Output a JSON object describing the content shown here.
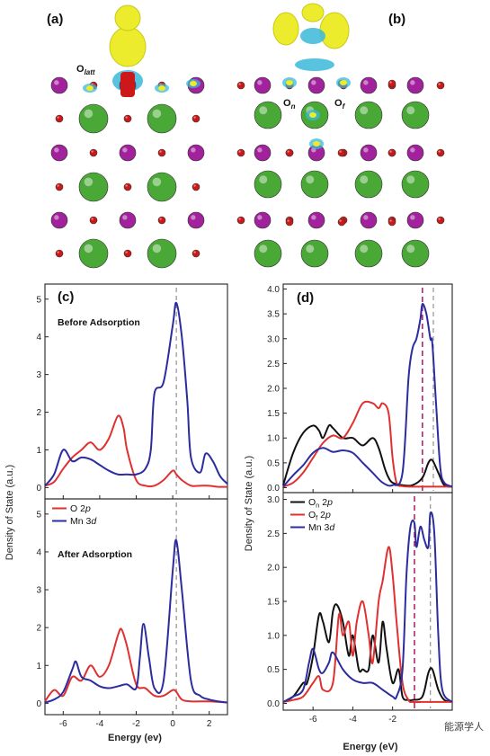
{
  "structure_panels": {
    "a": {
      "label": "(a)",
      "annotation_main": "O",
      "annotation_sub": "latt"
    },
    "b": {
      "label": "(b)",
      "n_main": "O",
      "n_sub": "n",
      "f_main": "O",
      "f_sub": "f"
    }
  },
  "colors": {
    "O2p": "#e03030",
    "Mn3d": "#2c2ca0",
    "On2p": "#111111",
    "Of2p": "#e03030",
    "fermi_grey": "#9a9a9a",
    "fermi_pink": "#b2246e",
    "mn_atom": "#a2219c",
    "la_atom": "#49a836",
    "o_atom": "#cc1818",
    "charge_yellow": "#ecec2c",
    "charge_cyan": "#39b9d9"
  },
  "watermark": "能源学人",
  "chart_data": [
    {
      "id": "c",
      "panel_label": "(c)",
      "type": "line",
      "xlabel": "Energy (ev)",
      "ylabel": "Density of State (a.u.)",
      "xlim": [
        -7,
        3
      ],
      "xticks": [
        "-6",
        "-4",
        "-2",
        "0",
        "2"
      ],
      "subplots": [
        {
          "id": "c_top",
          "annotation": "Before Adsorption",
          "ylim": [
            -0.3,
            5.4
          ],
          "yticks": [
            "0",
            "1",
            "2",
            "3",
            "4",
            "5"
          ],
          "fermi_level": 0.2,
          "series": [
            {
              "key": "o2p",
              "color": "#e03030",
              "x": [
                -7,
                -6.5,
                -6.0,
                -5.5,
                -5.0,
                -4.5,
                -4.0,
                -3.5,
                -3.0,
                -2.7,
                -2.5,
                -2.0,
                -1.5,
                -1.0,
                -0.5,
                0.0,
                0.2,
                0.5,
                1.0,
                1.5,
                2.0,
                2.5,
                3.0
              ],
              "y": [
                0.05,
                0.15,
                0.5,
                0.8,
                1.0,
                1.2,
                1.0,
                1.3,
                1.9,
                1.6,
                1.0,
                0.2,
                0.05,
                0.05,
                0.2,
                0.45,
                0.35,
                0.2,
                0.05,
                0.05,
                0.05,
                0.02,
                0.02
              ]
            },
            {
              "key": "mn3d",
              "color": "#2c2ca0",
              "x": [
                -7,
                -6.5,
                -6.0,
                -5.5,
                -5.0,
                -4.5,
                -4.0,
                -3.5,
                -3.0,
                -2.5,
                -2.0,
                -1.5,
                -1.2,
                -1.0,
                -0.5,
                0.0,
                0.2,
                0.5,
                0.8,
                1.0,
                1.5,
                1.8,
                2.2,
                2.6,
                3.0
              ],
              "y": [
                0.05,
                0.35,
                1.0,
                0.7,
                0.8,
                0.75,
                0.6,
                0.45,
                0.35,
                0.35,
                0.35,
                0.5,
                1.0,
                2.5,
                2.8,
                4.3,
                4.9,
                4.0,
                2.3,
                0.8,
                0.4,
                0.9,
                0.7,
                0.3,
                0.1
              ]
            }
          ]
        },
        {
          "id": "c_bottom",
          "annotation": "After Adsorption",
          "ylim": [
            -0.3,
            5.4
          ],
          "yticks": [
            "0",
            "1",
            "2",
            "3",
            "4",
            "5"
          ],
          "fermi_level": 0.2,
          "legend": [
            {
              "key": "o2p",
              "main": "O 2",
              "italic": "p",
              "color": "#e03030"
            },
            {
              "key": "mn3d",
              "main": "Mn 3",
              "italic": "d",
              "color": "#2c2ca0"
            }
          ],
          "series": [
            {
              "key": "o2p",
              "color": "#e03030",
              "x": [
                -7,
                -6.5,
                -6.0,
                -5.5,
                -5.0,
                -4.5,
                -4.0,
                -3.5,
                -3.0,
                -2.8,
                -2.5,
                -2.0,
                -1.5,
                -1.0,
                -0.5,
                0.0,
                0.2,
                0.5,
                1.0,
                2.0,
                3.0
              ],
              "y": [
                0.05,
                0.35,
                0.2,
                0.7,
                0.6,
                1.0,
                0.7,
                1.0,
                1.8,
                1.95,
                1.5,
                0.5,
                0.4,
                0.2,
                0.2,
                0.35,
                0.3,
                0.1,
                0.05,
                0.05,
                0.02
              ]
            },
            {
              "key": "mn3d",
              "color": "#2c2ca0",
              "x": [
                -7,
                -6.5,
                -6.0,
                -5.5,
                -5.3,
                -5.0,
                -4.5,
                -4.0,
                -3.5,
                -3.0,
                -2.5,
                -2.0,
                -1.8,
                -1.6,
                -1.3,
                -1.0,
                -0.5,
                0.0,
                0.2,
                0.5,
                1.0,
                1.5,
                2.0,
                2.5,
                3.0
              ],
              "y": [
                0.02,
                0.1,
                0.3,
                0.9,
                1.1,
                0.7,
                0.6,
                0.45,
                0.4,
                0.45,
                0.5,
                0.4,
                1.2,
                2.1,
                1.2,
                0.4,
                0.6,
                3.5,
                4.3,
                3.0,
                0.6,
                0.2,
                0.1,
                0.05,
                0.02
              ]
            }
          ]
        }
      ]
    },
    {
      "id": "d",
      "panel_label": "(d)",
      "type": "line",
      "xlabel": "Energy (eV)",
      "ylabel": "Density of State (a.u.)",
      "xlim": [
        -7.5,
        1
      ],
      "xticks": [
        "-6",
        "-4",
        "-2"
      ],
      "subplots": [
        {
          "id": "d_top",
          "ylim": [
            -0.1,
            4.1
          ],
          "yticks": [
            "0.0",
            "0.5",
            "1.0",
            "1.5",
            "2.0",
            "2.5",
            "3.0",
            "3.5",
            "4.0"
          ],
          "fermi_pink": -0.5,
          "fermi_grey": 0.05,
          "series": [
            {
              "key": "on2p",
              "color": "#111111",
              "x": [
                -7.5,
                -7.0,
                -6.5,
                -6.0,
                -5.7,
                -5.5,
                -5.2,
                -5.0,
                -4.5,
                -4.0,
                -3.5,
                -3.0,
                -2.7,
                -2.4,
                -2.2,
                -2.0,
                -1.5,
                -1.0,
                -0.5,
                -0.2,
                0.0,
                0.3,
                0.6,
                1.0
              ],
              "y": [
                0.05,
                0.7,
                1.1,
                1.25,
                1.15,
                1.0,
                1.25,
                1.2,
                1.0,
                1.0,
                0.85,
                1.0,
                0.8,
                0.4,
                0.2,
                0.1,
                0.05,
                0.05,
                0.2,
                0.5,
                0.55,
                0.3,
                0.05,
                0.02
              ]
            },
            {
              "key": "of2p",
              "color": "#e03030",
              "x": [
                -7.5,
                -7.0,
                -6.5,
                -6.0,
                -5.5,
                -5.0,
                -4.5,
                -4.0,
                -3.5,
                -3.0,
                -2.7,
                -2.5,
                -2.2,
                -2.0,
                -1.8,
                -1.5,
                -1.0,
                -0.5,
                0.0,
                0.5,
                1.0
              ],
              "y": [
                0.02,
                0.1,
                0.3,
                0.6,
                0.9,
                1.05,
                1.0,
                1.3,
                1.7,
                1.7,
                1.6,
                1.7,
                1.5,
                0.6,
                0.1,
                0.03,
                0.02,
                0.02,
                0.02,
                0.02,
                0.02
              ]
            },
            {
              "key": "mn3d",
              "color": "#2c2ca0",
              "x": [
                -7.5,
                -7.0,
                -6.5,
                -6.0,
                -5.5,
                -5.0,
                -4.5,
                -4.0,
                -3.5,
                -3.0,
                -2.5,
                -2.0,
                -1.5,
                -1.2,
                -1.0,
                -0.8,
                -0.6,
                -0.5,
                -0.3,
                -0.1,
                0.0,
                0.2,
                0.4,
                0.6,
                1.0
              ],
              "y": [
                0.02,
                0.25,
                0.45,
                0.7,
                0.8,
                0.72,
                0.75,
                0.7,
                0.5,
                0.3,
                0.1,
                0.05,
                0.3,
                2.2,
                2.8,
                3.0,
                3.4,
                3.7,
                3.5,
                3.0,
                2.9,
                1.6,
                0.4,
                0.1,
                0.02
              ]
            }
          ]
        },
        {
          "id": "d_bottom",
          "ylim": [
            -0.1,
            3.1
          ],
          "yticks": [
            "0.0",
            "0.5",
            "1.0",
            "1.5",
            "2.0",
            "2.5",
            "3.0"
          ],
          "fermi_pink": -0.9,
          "fermi_grey": -0.1,
          "legend": [
            {
              "key": "on2p",
              "main": "O",
              "sub": "n",
              "tail": " 2",
              "italic": "p",
              "color": "#111111"
            },
            {
              "key": "of2p",
              "main": "O",
              "sub": "f",
              "tail": " 2",
              "italic": "p",
              "color": "#e03030"
            },
            {
              "key": "mn3d",
              "main": "Mn 3",
              "italic": "d",
              "color": "#2c2ca0"
            }
          ],
          "series": [
            {
              "key": "on2p",
              "color": "#111111",
              "x": [
                -7.5,
                -7.0,
                -6.5,
                -6.3,
                -6.0,
                -5.7,
                -5.5,
                -5.2,
                -5.0,
                -4.8,
                -4.5,
                -4.2,
                -4.0,
                -3.7,
                -3.5,
                -3.2,
                -3.0,
                -2.7,
                -2.5,
                -2.3,
                -2.0,
                -1.7,
                -1.5,
                -1.2,
                -1.0,
                -0.5,
                -0.2,
                0.0,
                0.3,
                0.6,
                1.0
              ],
              "y": [
                0.02,
                0.1,
                0.3,
                0.3,
                0.7,
                1.3,
                1.2,
                0.9,
                1.35,
                1.45,
                1.2,
                0.7,
                1.0,
                0.5,
                0.5,
                0.5,
                1.0,
                0.6,
                1.2,
                0.8,
                0.3,
                0.5,
                0.1,
                0.05,
                0.05,
                0.1,
                0.45,
                0.5,
                0.2,
                0.05,
                0.02
              ]
            },
            {
              "key": "of2p",
              "color": "#e03030",
              "x": [
                -7.5,
                -7.0,
                -6.5,
                -6.0,
                -5.7,
                -5.5,
                -5.0,
                -4.7,
                -4.5,
                -4.2,
                -4.0,
                -3.8,
                -3.5,
                -3.2,
                -3.0,
                -2.7,
                -2.5,
                -2.2,
                -2.0,
                -1.8,
                -1.5,
                -1.2,
                -1.0,
                -0.5,
                0.0,
                0.5,
                1.0
              ],
              "y": [
                0.02,
                0.05,
                0.1,
                0.3,
                0.4,
                0.2,
                0.3,
                1.3,
                1.0,
                1.2,
                0.7,
                1.2,
                1.5,
                1.0,
                0.6,
                1.5,
                1.8,
                2.3,
                1.9,
                1.2,
                0.3,
                0.05,
                0.02,
                0.02,
                0.02,
                0.02,
                0.02
              ]
            },
            {
              "key": "mn3d",
              "color": "#2c2ca0",
              "x": [
                -7.5,
                -7.0,
                -6.5,
                -6.2,
                -6.0,
                -5.7,
                -5.5,
                -5.2,
                -5.0,
                -4.5,
                -4.0,
                -3.5,
                -3.0,
                -2.5,
                -2.0,
                -1.8,
                -1.5,
                -1.3,
                -1.1,
                -0.9,
                -0.8,
                -0.6,
                -0.4,
                -0.2,
                -0.1,
                0.1,
                0.3,
                0.5,
                1.0
              ],
              "y": [
                0.02,
                0.1,
                0.2,
                0.6,
                0.8,
                0.5,
                0.45,
                0.6,
                0.75,
                0.5,
                0.35,
                0.3,
                0.3,
                0.2,
                0.1,
                0.1,
                0.5,
                1.9,
                2.6,
                2.65,
                2.3,
                2.6,
                2.4,
                2.3,
                2.8,
                2.5,
                1.0,
                0.2,
                0.02
              ]
            }
          ]
        }
      ]
    }
  ]
}
